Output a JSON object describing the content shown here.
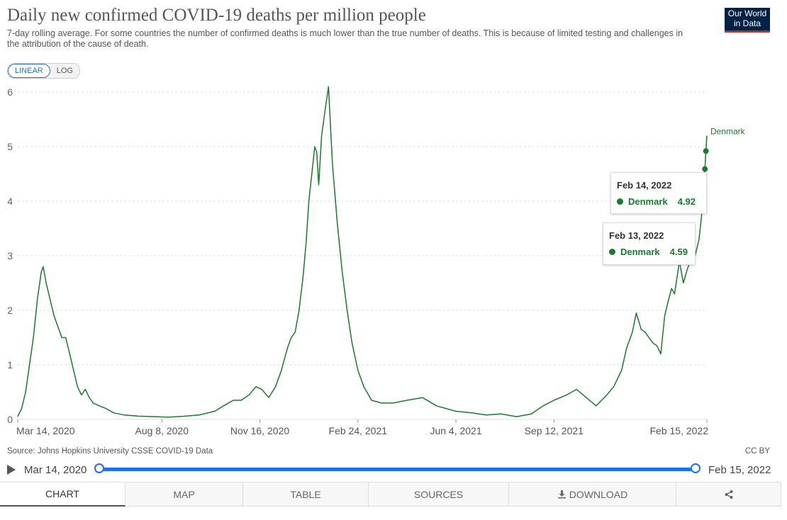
{
  "title": "Daily new confirmed COVID-19 deaths per million people",
  "subtitle": "7-day rolling average. For some countries the number of confirmed deaths is much lower than the true number of deaths. This is because of limited testing and challenges in the attribution of the cause of death.",
  "logo": {
    "line1": "Our World",
    "line2": "in Data"
  },
  "scale_toggle": {
    "linear": "LINEAR",
    "log": "LOG",
    "active": "linear"
  },
  "source": "Source: Johns Hopkins University CSSE COVID-19 Data",
  "license": "CC BY",
  "timeline": {
    "start": "Mar 14, 2020",
    "end": "Feb 15, 2022"
  },
  "tabs": [
    {
      "label": "CHART",
      "icon": ""
    },
    {
      "label": "MAP",
      "icon": ""
    },
    {
      "label": "TABLE",
      "icon": ""
    },
    {
      "label": "SOURCES",
      "icon": ""
    },
    {
      "label": "DOWNLOAD",
      "icon": "download-icon"
    },
    {
      "label": "",
      "icon": "share-icon"
    }
  ],
  "tooltips": [
    {
      "date": "Feb 14, 2022",
      "series": "Denmark",
      "value": "4.92"
    },
    {
      "date": "Feb 13, 2022",
      "series": "Denmark",
      "value": "4.59"
    }
  ],
  "colors": {
    "series": "#1a7a2e",
    "accent": "#1a73e8",
    "grid": "#dddddd"
  },
  "chart_data": {
    "type": "line",
    "title": "Daily new confirmed COVID-19 deaths per million people",
    "xlabel": "",
    "ylabel": "",
    "ylim": [
      0,
      6
    ],
    "yticks": [
      0,
      1,
      2,
      3,
      4,
      5,
      6
    ],
    "xlim": [
      "2020-03-14",
      "2022-02-15"
    ],
    "xticks": [
      "Mar 14, 2020",
      "Aug 8, 2020",
      "Nov 16, 2020",
      "Feb 24, 2021",
      "Jun 4, 2021",
      "Sep 12, 2021",
      "Feb 15, 2022"
    ],
    "grid": true,
    "series": [
      {
        "name": "Denmark",
        "x": [
          "2020-03-14",
          "2020-03-18",
          "2020-03-22",
          "2020-03-26",
          "2020-03-30",
          "2020-04-03",
          "2020-04-07",
          "2020-04-09",
          "2020-04-12",
          "2020-04-16",
          "2020-04-20",
          "2020-04-24",
          "2020-04-28",
          "2020-05-02",
          "2020-05-06",
          "2020-05-10",
          "2020-05-14",
          "2020-05-18",
          "2020-05-22",
          "2020-05-26",
          "2020-05-30",
          "2020-06-05",
          "2020-06-12",
          "2020-06-20",
          "2020-07-01",
          "2020-07-15",
          "2020-08-01",
          "2020-08-15",
          "2020-09-01",
          "2020-09-15",
          "2020-10-01",
          "2020-10-10",
          "2020-10-20",
          "2020-10-28",
          "2020-11-05",
          "2020-11-12",
          "2020-11-18",
          "2020-11-25",
          "2020-12-02",
          "2020-12-08",
          "2020-12-14",
          "2020-12-18",
          "2020-12-22",
          "2020-12-26",
          "2020-12-30",
          "2021-01-02",
          "2021-01-05",
          "2021-01-08",
          "2021-01-11",
          "2021-01-13",
          "2021-01-15",
          "2021-01-18",
          "2021-01-21",
          "2021-01-25",
          "2021-01-29",
          "2021-02-03",
          "2021-02-08",
          "2021-02-13",
          "2021-02-18",
          "2021-02-24",
          "2021-03-02",
          "2021-03-10",
          "2021-03-20",
          "2021-04-01",
          "2021-04-15",
          "2021-05-01",
          "2021-05-15",
          "2021-06-04",
          "2021-06-20",
          "2021-07-05",
          "2021-07-20",
          "2021-08-05",
          "2021-08-20",
          "2021-09-01",
          "2021-09-12",
          "2021-09-25",
          "2021-10-05",
          "2021-10-15",
          "2021-10-25",
          "2021-11-05",
          "2021-11-12",
          "2021-11-20",
          "2021-11-25",
          "2021-12-01",
          "2021-12-05",
          "2021-12-10",
          "2021-12-14",
          "2021-12-18",
          "2021-12-22",
          "2021-12-26",
          "2021-12-30",
          "2022-01-03",
          "2022-01-07",
          "2022-01-10",
          "2022-01-13",
          "2022-01-18",
          "2022-01-22",
          "2022-01-26",
          "2022-01-30",
          "2022-02-03",
          "2022-02-07",
          "2022-02-10",
          "2022-02-13",
          "2022-02-14",
          "2022-02-15"
        ],
        "y": [
          0.05,
          0.2,
          0.5,
          1.0,
          1.5,
          2.2,
          2.7,
          2.8,
          2.5,
          2.2,
          1.9,
          1.7,
          1.5,
          1.5,
          1.2,
          0.9,
          0.6,
          0.45,
          0.55,
          0.4,
          0.3,
          0.25,
          0.2,
          0.12,
          0.08,
          0.06,
          0.05,
          0.04,
          0.06,
          0.08,
          0.15,
          0.25,
          0.35,
          0.35,
          0.45,
          0.6,
          0.55,
          0.4,
          0.6,
          0.9,
          1.3,
          1.5,
          1.6,
          2.0,
          2.6,
          3.2,
          4.0,
          4.5,
          5.0,
          4.9,
          4.3,
          5.2,
          5.6,
          6.1,
          4.7,
          3.6,
          2.7,
          2.0,
          1.4,
          0.9,
          0.6,
          0.35,
          0.3,
          0.3,
          0.35,
          0.4,
          0.25,
          0.15,
          0.12,
          0.08,
          0.1,
          0.05,
          0.1,
          0.25,
          0.35,
          0.45,
          0.55,
          0.4,
          0.25,
          0.45,
          0.6,
          0.9,
          1.3,
          1.6,
          1.95,
          1.65,
          1.6,
          1.5,
          1.4,
          1.35,
          1.2,
          1.9,
          2.2,
          2.4,
          2.3,
          2.9,
          2.5,
          2.75,
          2.95,
          3.0,
          3.3,
          3.8,
          4.59,
          4.92,
          5.2
        ]
      }
    ]
  }
}
